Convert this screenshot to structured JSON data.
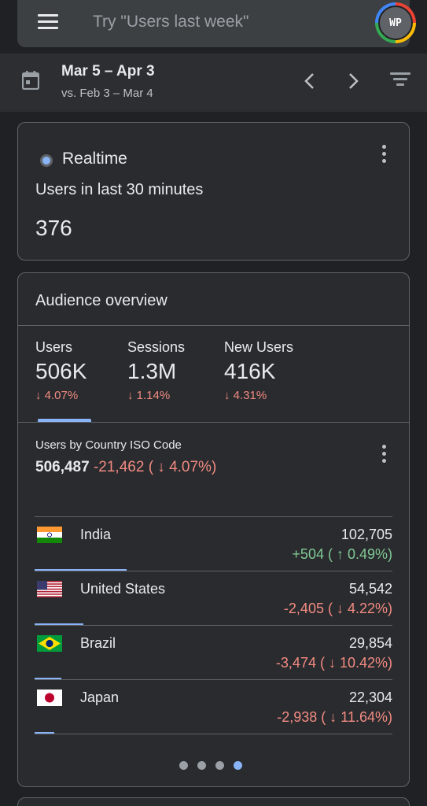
{
  "search": {
    "placeholder": "Try \"Users last week\""
  },
  "avatar": {
    "initials": "WP"
  },
  "date_range": {
    "current": "Mar 5 – Apr 3",
    "compare": "vs. Feb 3 – Mar 4"
  },
  "realtime": {
    "title": "Realtime",
    "subtitle": "Users in last 30 minutes",
    "value": "376"
  },
  "audience": {
    "title": "Audience overview",
    "metrics": [
      {
        "label": "Users",
        "value": "506K",
        "delta": "↓ 4.07%"
      },
      {
        "label": "Sessions",
        "value": "1.3M",
        "delta": "↓ 1.14%"
      },
      {
        "label": "New Users",
        "value": "416K",
        "delta": "↓ 4.31%"
      }
    ],
    "country": {
      "title": "Users by Country ISO Code",
      "total": "506,487",
      "total_delta": "-21,462 ( ↓ 4.07%)",
      "rows": [
        {
          "name": "India",
          "value": "102,705",
          "delta": "+504 ( ↑ 0.49%)",
          "direction": "up",
          "share": 0.203
        },
        {
          "name": "United States",
          "value": "54,542",
          "delta": "-2,405 ( ↓ 4.22%)",
          "direction": "down",
          "share": 0.108
        },
        {
          "name": "Brazil",
          "value": "29,854",
          "delta": "-3,474 ( ↓ 10.42%)",
          "direction": "down",
          "share": 0.059
        },
        {
          "name": "Japan",
          "value": "22,304",
          "delta": "-2,938 ( ↓ 11.64%)",
          "direction": "down",
          "share": 0.044
        }
      ]
    },
    "pager": {
      "count": 4,
      "active": 3
    }
  },
  "colors": {
    "accent": "#8ab4f8",
    "negative": "#f28b82",
    "positive": "#81c995"
  }
}
